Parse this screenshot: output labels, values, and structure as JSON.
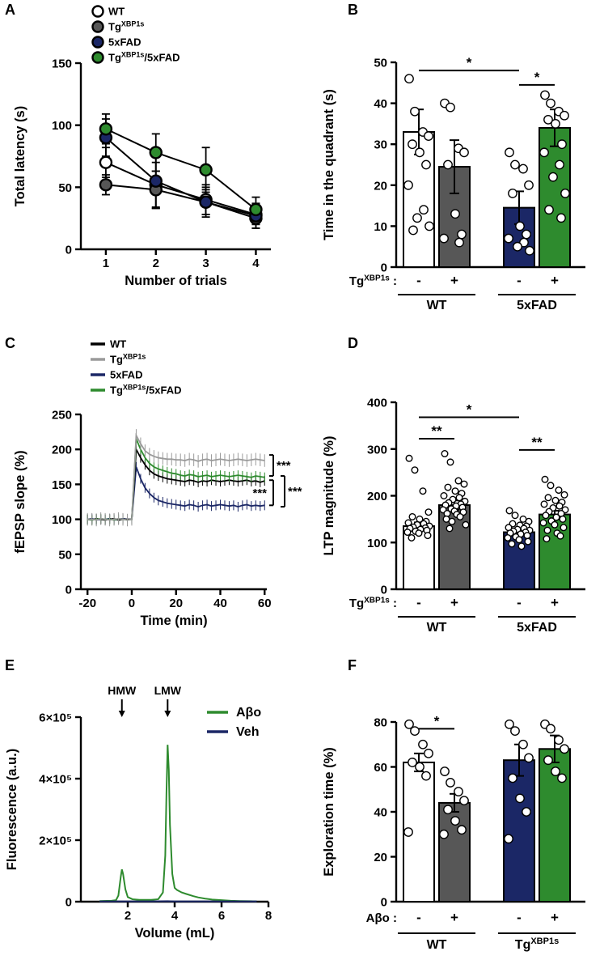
{
  "figure_background": "#ffffff",
  "colors": {
    "black": "#000000",
    "white": "#ffffff",
    "gray": "#575757",
    "light_gray_trace": "#9a9a9a",
    "navy": "#1b2766",
    "green": "#2e8b2e"
  },
  "chart_data": [
    {
      "panel": "A",
      "type": "line",
      "ylabel": "Total latency (s)",
      "xlabel": "Number of trials",
      "xlim": [
        0.5,
        4.3
      ],
      "ylim": [
        0,
        150
      ],
      "xticks": [
        1,
        2,
        3,
        4
      ],
      "yticks": [
        0,
        50,
        100,
        150
      ],
      "x": [
        1,
        2,
        3,
        4
      ],
      "series": [
        {
          "name": "WT",
          "fill": "#ffffff",
          "values": [
            70,
            52,
            40,
            28
          ],
          "err": [
            12,
            18,
            12,
            8
          ]
        },
        {
          "name": "Tg{XBP1s}",
          "fill": "#575757",
          "values": [
            52,
            48,
            38,
            25
          ],
          "err": [
            8,
            15,
            10,
            8
          ]
        },
        {
          "name": "5xFAD",
          "fill": "#1b2766",
          "values": [
            90,
            55,
            38,
            27
          ],
          "err": [
            15,
            22,
            12,
            10
          ]
        },
        {
          "name": "Tg{XBP1s}/5xFAD",
          "fill": "#2e8b2e",
          "values": [
            97,
            78,
            64,
            32
          ],
          "err": [
            12,
            15,
            18,
            10
          ]
        }
      ],
      "legend": [
        {
          "label": "WT",
          "fill": "#ffffff"
        },
        {
          "label": "Tg{XBP1s}",
          "fill": "#575757"
        },
        {
          "label": "5xFAD",
          "fill": "#1b2766"
        },
        {
          "label": "Tg{XBP1s}/5xFAD",
          "fill": "#2e8b2e"
        }
      ]
    },
    {
      "panel": "B",
      "type": "bar",
      "ylabel": "Time in the quadrant (s)",
      "ylim": [
        0,
        50
      ],
      "yticks": [
        0,
        10,
        20,
        30,
        40,
        50
      ],
      "row_label": "Tg{XBP1s} :",
      "bars": [
        {
          "sign": "-",
          "fill": "#ffffff",
          "value": 33,
          "err": 5.5,
          "dots": [
            46,
            38,
            33,
            32,
            30,
            28,
            25,
            20,
            14,
            12,
            10,
            9
          ]
        },
        {
          "sign": "+",
          "fill": "#575757",
          "value": 24.5,
          "err": 6.5,
          "dots": [
            40,
            39,
            29,
            28,
            25,
            13,
            8,
            7,
            6
          ]
        },
        {
          "sign": "-",
          "fill": "#1b2766",
          "value": 14.5,
          "err": 4,
          "dots": [
            28,
            25,
            24,
            20,
            18,
            10,
            8,
            7,
            6,
            5,
            4
          ]
        },
        {
          "sign": "+",
          "fill": "#2e8b2e",
          "value": 34,
          "err": 4.5,
          "dots": [
            42,
            40,
            38,
            37,
            36,
            35,
            30,
            28,
            25,
            22,
            18,
            14,
            12
          ]
        }
      ],
      "groups": [
        {
          "label": "WT",
          "from": 0,
          "to": 1
        },
        {
          "label": "5xFAD",
          "from": 2,
          "to": 3
        }
      ],
      "brackets": [
        {
          "from": 0,
          "to": 2,
          "y": 48,
          "label": "*"
        },
        {
          "from": 2,
          "to": 3,
          "y": 44.5,
          "label": "*"
        }
      ]
    },
    {
      "panel": "C",
      "type": "timecourse",
      "ylabel": "fEPSP slope (%)",
      "xlabel": "Time (min)",
      "xlim": [
        -23,
        61
      ],
      "ylim": [
        0,
        250
      ],
      "xticks": [
        -20,
        0,
        20,
        40,
        60
      ],
      "yticks": [
        0,
        50,
        100,
        150,
        200,
        250
      ],
      "x": [
        -20,
        -18,
        -16,
        -14,
        -12,
        -10,
        -8,
        -6,
        -4,
        -2,
        0,
        2,
        4,
        6,
        8,
        10,
        12,
        14,
        16,
        18,
        20,
        22,
        24,
        26,
        28,
        30,
        32,
        34,
        36,
        38,
        40,
        42,
        44,
        46,
        48,
        50,
        52,
        54,
        56,
        58,
        60
      ],
      "series": [
        {
          "name": "WT",
          "color": "#000000",
          "err": 7,
          "values": [
            100,
            99,
            101,
            100,
            99,
            100,
            101,
            99,
            100,
            100,
            100,
            200,
            188,
            178,
            170,
            165,
            162,
            160,
            158,
            157,
            156,
            155,
            154,
            156,
            155,
            153,
            155,
            154,
            156,
            155,
            154,
            155,
            156,
            155,
            154,
            155,
            156,
            154,
            155,
            153,
            155
          ]
        },
        {
          "name": "Tg{XBP1s}",
          "color": "#9a9a9a",
          "err": 9,
          "values": [
            100,
            100,
            99,
            101,
            100,
            99,
            100,
            101,
            100,
            99,
            100,
            220,
            208,
            198,
            193,
            190,
            188,
            187,
            186,
            186,
            185,
            185,
            184,
            186,
            185,
            183,
            185,
            186,
            184,
            185,
            186,
            185,
            184,
            185,
            186,
            185,
            184,
            185,
            186,
            185,
            184
          ]
        },
        {
          "name": "5xFAD",
          "color": "#1b2766",
          "err": 7,
          "values": [
            100,
            101,
            99,
            100,
            100,
            101,
            99,
            100,
            101,
            100,
            100,
            175,
            158,
            145,
            137,
            131,
            127,
            125,
            123,
            122,
            121,
            120,
            119,
            121,
            120,
            118,
            120,
            121,
            119,
            120,
            121,
            120,
            119,
            120,
            118,
            120,
            121,
            119,
            120,
            119,
            120
          ]
        },
        {
          "name": "Tg{XBP1s}/5xFAD",
          "color": "#2e8b2e",
          "err": 7,
          "values": [
            100,
            99,
            100,
            101,
            100,
            100,
            99,
            101,
            100,
            99,
            100,
            215,
            200,
            188,
            180,
            175,
            172,
            170,
            168,
            166,
            165,
            163,
            162,
            164,
            163,
            161,
            162,
            163,
            161,
            162,
            163,
            162,
            161,
            162,
            163,
            162,
            161,
            160,
            162,
            161,
            160
          ]
        }
      ],
      "legend": [
        {
          "label": "WT",
          "color": "#000000"
        },
        {
          "label": "Tg{XBP1s}",
          "color": "#9a9a9a"
        },
        {
          "label": "5xFAD",
          "color": "#1b2766"
        },
        {
          "label": "Tg{XBP1s}/5xFAD",
          "color": "#2e8b2e"
        }
      ],
      "brackets": [
        {
          "v1": 192,
          "v2": 162,
          "label": "***",
          "side": "right",
          "xo": 8
        },
        {
          "v1": 156,
          "v2": 120,
          "label": "***",
          "side": "left",
          "xo": 8
        },
        {
          "v1": 162,
          "v2": 118,
          "label": "***",
          "side": "right",
          "xo": 22
        }
      ]
    },
    {
      "panel": "D",
      "type": "bar",
      "ylabel": "LTP magnitude (%)",
      "ylim": [
        0,
        400
      ],
      "yticks": [
        0,
        100,
        200,
        300,
        400
      ],
      "row_label": "Tg{XBP1s} :",
      "bars": [
        {
          "sign": "-",
          "fill": "#ffffff",
          "value": 135,
          "err": 8,
          "dots": [
            280,
            255,
            210,
            165,
            155,
            150,
            145,
            142,
            140,
            138,
            135,
            133,
            131,
            130,
            128,
            126,
            124,
            122,
            120,
            115,
            110
          ]
        },
        {
          "sign": "+",
          "fill": "#575757",
          "value": 180,
          "err": 10,
          "dots": [
            290,
            272,
            232,
            225,
            218,
            210,
            205,
            200,
            196,
            192,
            188,
            185,
            182,
            180,
            178,
            175,
            172,
            170,
            167,
            165,
            162,
            160,
            155,
            150,
            145,
            138,
            130
          ]
        },
        {
          "sign": "-",
          "fill": "#1b2766",
          "value": 122,
          "err": 6,
          "dots": [
            168,
            158,
            150,
            145,
            140,
            137,
            135,
            132,
            130,
            128,
            126,
            124,
            122,
            120,
            118,
            115,
            112,
            110,
            106,
            102,
            97,
            92
          ]
        },
        {
          "sign": "+",
          "fill": "#2e8b2e",
          "value": 160,
          "err": 8,
          "dots": [
            235,
            222,
            212,
            202,
            196,
            190,
            186,
            182,
            178,
            174,
            170,
            166,
            162,
            158,
            154,
            150,
            146,
            142,
            138,
            132,
            126,
            120,
            114,
            108
          ]
        }
      ],
      "groups": [
        {
          "label": "WT",
          "from": 0,
          "to": 1
        },
        {
          "label": "5xFAD",
          "from": 2,
          "to": 3
        }
      ],
      "brackets": [
        {
          "from": 0,
          "to": 2,
          "y": 368,
          "label": "*"
        },
        {
          "from": 0,
          "to": 1,
          "y": 322,
          "label": "**"
        },
        {
          "from": 2,
          "to": 3,
          "y": 298,
          "label": "**"
        }
      ]
    },
    {
      "panel": "E",
      "type": "chromatogram",
      "ylabel": "Fluorescence (a.u.)",
      "xlabel": "Volume (mL)",
      "xlim": [
        0,
        8
      ],
      "ylim": [
        0,
        600000
      ],
      "xticks": [
        2,
        4,
        6,
        8
      ],
      "yticks": [
        {
          "v": 0,
          "label": "0"
        },
        {
          "v": 200000,
          "label": "2×10⁵"
        },
        {
          "v": 400000,
          "label": "4×10⁵"
        },
        {
          "v": 600000,
          "label": "6×10⁵"
        }
      ],
      "annotations": [
        {
          "label": "HMW",
          "x": 1.75
        },
        {
          "label": "LMW",
          "x": 3.7
        }
      ],
      "legend": [
        {
          "label": "Aβo",
          "color": "#2e8b2e"
        },
        {
          "label": "Veh",
          "color": "#1b2766"
        }
      ],
      "series": [
        {
          "name": "Abo",
          "color": "#2e8b2e",
          "points": [
            [
              0.8,
              2000
            ],
            [
              1.3,
              3000
            ],
            [
              1.5,
              5000
            ],
            [
              1.6,
              20000
            ],
            [
              1.7,
              80000
            ],
            [
              1.75,
              105000
            ],
            [
              1.8,
              90000
            ],
            [
              1.9,
              40000
            ],
            [
              2.0,
              15000
            ],
            [
              2.2,
              8000
            ],
            [
              2.5,
              6000
            ],
            [
              3.0,
              6000
            ],
            [
              3.3,
              8000
            ],
            [
              3.5,
              30000
            ],
            [
              3.6,
              150000
            ],
            [
              3.65,
              350000
            ],
            [
              3.7,
              510000
            ],
            [
              3.75,
              430000
            ],
            [
              3.8,
              250000
            ],
            [
              3.9,
              90000
            ],
            [
              4.0,
              45000
            ],
            [
              4.1,
              38000
            ],
            [
              4.3,
              30000
            ],
            [
              4.5,
              25000
            ],
            [
              4.8,
              18000
            ],
            [
              5.0,
              14000
            ],
            [
              5.3,
              10000
            ],
            [
              5.6,
              7000
            ],
            [
              6.0,
              5000
            ],
            [
              6.4,
              3000
            ],
            [
              6.8,
              2000
            ],
            [
              7.2,
              1500
            ],
            [
              7.5,
              1000
            ]
          ]
        },
        {
          "name": "Veh",
          "color": "#1b2766",
          "points": [
            [
              0.8,
              1000
            ],
            [
              2,
              1000
            ],
            [
              3,
              1000
            ],
            [
              3.7,
              1500
            ],
            [
              4,
              1000
            ],
            [
              5,
              1000
            ],
            [
              6,
              1000
            ],
            [
              7,
              1000
            ],
            [
              7.5,
              1000
            ]
          ]
        }
      ]
    },
    {
      "panel": "F",
      "type": "bar",
      "ylabel": "Exploration time (%)",
      "ylim": [
        0,
        80
      ],
      "yticks": [
        0,
        20,
        40,
        60,
        80
      ],
      "row_label": "Aβo :",
      "bars": [
        {
          "sign": "-",
          "fill": "#ffffff",
          "value": 62,
          "err": 4,
          "dots": [
            79,
            76,
            70,
            66,
            62,
            60,
            56,
            31
          ]
        },
        {
          "sign": "+",
          "fill": "#575757",
          "value": 44,
          "err": 4,
          "dots": [
            58,
            53,
            49,
            45,
            41,
            36,
            32,
            30
          ]
        },
        {
          "sign": "-",
          "fill": "#1b2766",
          "value": 63,
          "err": 7,
          "dots": [
            79,
            76,
            70,
            64,
            55,
            46,
            40,
            28
          ]
        },
        {
          "sign": "+",
          "fill": "#2e8b2e",
          "value": 68,
          "err": 6,
          "dots": [
            79,
            77,
            72,
            68,
            63,
            58,
            55
          ]
        }
      ],
      "groups": [
        {
          "label": "WT",
          "from": 0,
          "to": 1
        },
        {
          "label": "Tg{XBP1s}",
          "from": 2,
          "to": 3
        }
      ],
      "brackets": [
        {
          "from": 0,
          "to": 1,
          "y": 77,
          "label": "*"
        }
      ]
    }
  ]
}
